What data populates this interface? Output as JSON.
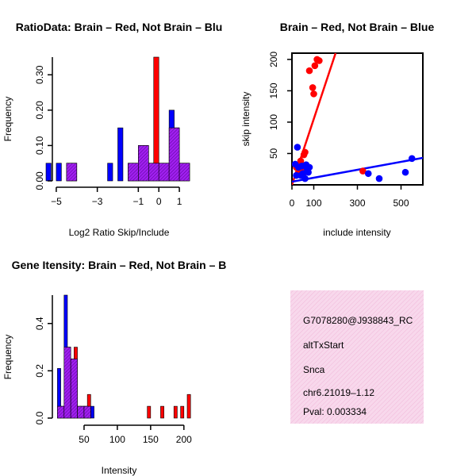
{
  "colors": {
    "brain": "#ff0000",
    "not_brain": "#0000ff",
    "overlap": "#a020f0",
    "panel_bg": "#f8d8ec",
    "pval": "#8b0000"
  },
  "chart_data": [
    {
      "type": "histogram",
      "title": "RatioData: Brain – Red, Not Brain – Blu",
      "xlabel": "Log2 Ratio Skip/Include",
      "ylabel": "Frequency",
      "xlim": [
        -5.5,
        1.5
      ],
      "ylim": [
        0,
        0.35
      ],
      "xticks": [
        -5,
        -3,
        -1,
        0,
        1
      ],
      "xtick_labels": [
        "−5",
        "−3",
        "−1",
        "0",
        "1"
      ],
      "yticks": [
        0.0,
        0.1,
        0.2,
        0.3
      ],
      "ytick_labels": [
        "0.00",
        "0.10",
        "0.20",
        "0.30"
      ],
      "bin_width": 0.5,
      "series": [
        {
          "name": "Not Brain",
          "color_key": "not_brain",
          "offset": 0,
          "bins": [
            [
              -5.5,
              0.05
            ],
            [
              -5.0,
              0.05
            ],
            [
              -4.5,
              0.05
            ],
            [
              -2.5,
              0.05
            ],
            [
              -2.0,
              0.15
            ],
            [
              -1.5,
              0.05
            ],
            [
              -1.0,
              0.1
            ],
            [
              -0.5,
              0.05
            ],
            [
              0.0,
              0.05
            ],
            [
              0.5,
              0.2
            ],
            [
              1.0,
              0.05
            ]
          ]
        },
        {
          "name": "Brain",
          "color_key": "brain",
          "offset": 0.5,
          "bins": [
            [
              -4.5,
              0.05
            ],
            [
              -1.5,
              0.05
            ],
            [
              -1.0,
              0.1
            ],
            [
              -0.5,
              0.35
            ],
            [
              0.0,
              0.05
            ],
            [
              0.5,
              0.15
            ],
            [
              1.0,
              0.05
            ]
          ]
        }
      ]
    },
    {
      "type": "scatter",
      "title": "Brain – Red, Not Brain – Blue",
      "xlabel": "include intensity",
      "ylabel": "skip intensity",
      "xlim": [
        0,
        600
      ],
      "ylim": [
        0,
        210
      ],
      "xticks": [
        0,
        100,
        300,
        500
      ],
      "yticks": [
        50,
        100,
        150,
        200
      ],
      "series": [
        {
          "name": "Brain",
          "color_key": "brain",
          "points": [
            [
              115,
              200
            ],
            [
              125,
              198
            ],
            [
              105,
              190
            ],
            [
              80,
              182
            ],
            [
              95,
              155
            ],
            [
              100,
              145
            ],
            [
              60,
              52
            ],
            [
              55,
              48
            ],
            [
              40,
              38
            ],
            [
              35,
              30
            ],
            [
              45,
              25
            ],
            [
              30,
              20
            ],
            [
              50,
              15
            ],
            [
              325,
              22
            ],
            [
              20,
              28
            ],
            [
              35,
              33
            ]
          ]
        },
        {
          "name": "Not Brain",
          "color_key": "not_brain",
          "points": [
            [
              25,
              60
            ],
            [
              15,
              33
            ],
            [
              30,
              28
            ],
            [
              45,
              30
            ],
            [
              70,
              25
            ],
            [
              75,
              20
            ],
            [
              50,
              18
            ],
            [
              40,
              15
            ],
            [
              60,
              10
            ],
            [
              65,
              32
            ],
            [
              350,
              18
            ],
            [
              400,
              10
            ],
            [
              520,
              20
            ],
            [
              550,
              42
            ],
            [
              20,
              15
            ],
            [
              80,
              28
            ]
          ]
        }
      ],
      "lines": [
        {
          "name": "Brain fit",
          "color_key": "brain",
          "from": [
            0,
            0
          ],
          "to": [
            200,
            210
          ]
        },
        {
          "name": "Not Brain fit",
          "color_key": "not_brain",
          "from": [
            0,
            5
          ],
          "to": [
            600,
            43
          ]
        }
      ]
    },
    {
      "type": "histogram",
      "title": "Gene Itensity: Brain – Red, Not Brain – B",
      "xlabel": "Intensity",
      "ylabel": "Frequency",
      "xlim": [
        0,
        205
      ],
      "ylim": [
        0,
        0.52
      ],
      "xticks": [
        50,
        100,
        150,
        200
      ],
      "yticks": [
        0.0,
        0.2,
        0.4
      ],
      "ytick_labels": [
        "0.0",
        "0.2",
        "0.4"
      ],
      "bin_width": 10,
      "series": [
        {
          "name": "Not Brain",
          "color_key": "not_brain",
          "offset": 0,
          "bins": [
            [
              10,
              0.21
            ],
            [
              20,
              0.52
            ],
            [
              30,
              0.25
            ],
            [
              40,
              0.05
            ],
            [
              50,
              0.05
            ],
            [
              60,
              0.05
            ]
          ]
        },
        {
          "name": "Brain",
          "color_key": "brain",
          "offset": 5,
          "bins": [
            [
              10,
              0.05
            ],
            [
              20,
              0.3
            ],
            [
              30,
              0.3
            ],
            [
              40,
              0.05
            ],
            [
              50,
              0.1
            ],
            [
              140,
              0.05
            ],
            [
              160,
              0.05
            ],
            [
              180,
              0.05
            ],
            [
              190,
              0.05
            ],
            [
              200,
              0.1
            ]
          ]
        }
      ]
    }
  ],
  "info_panel": {
    "id": "G7078280@J938843_RC",
    "event_type": "altTxStart",
    "gene": "Snca",
    "location": "chr6.21019–1.12",
    "pval": "Pval: 0.003334"
  }
}
